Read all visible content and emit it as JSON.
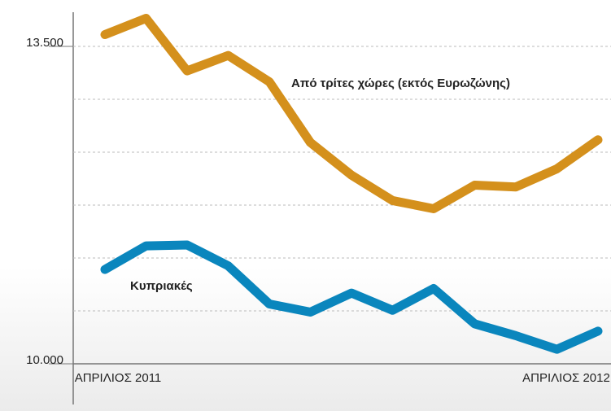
{
  "chart_data": {
    "type": "line",
    "categories": [
      "ΑΠΡΙΛΙΟΣ 2011",
      null,
      null,
      null,
      null,
      null,
      null,
      null,
      null,
      null,
      null,
      null,
      "ΑΠΡΙΛΙΟΣ 2012"
    ],
    "series": [
      {
        "name": "Από τρίτες χώρες (εκτός Ευρωζώνης)",
        "color": "#d4901c",
        "values": [
          13630,
          13810,
          13230,
          13400,
          13110,
          12440,
          12080,
          11800,
          11710,
          11970,
          11950,
          12150,
          12470
        ]
      },
      {
        "name": "Κυπριακές",
        "color": "#0a86bd",
        "values": [
          11040,
          11300,
          11310,
          11080,
          10660,
          10570,
          10780,
          10590,
          10830,
          10440,
          10310,
          10160,
          10360
        ]
      }
    ],
    "ylim": [
      10000,
      13500
    ],
    "yticks": [
      {
        "value": 10000,
        "label": "10.000"
      },
      {
        "value": 13500,
        "label": "13.500"
      }
    ],
    "ygrid": [
      10583,
      11167,
      11750,
      12333,
      12917,
      13500
    ],
    "grid": true
  }
}
